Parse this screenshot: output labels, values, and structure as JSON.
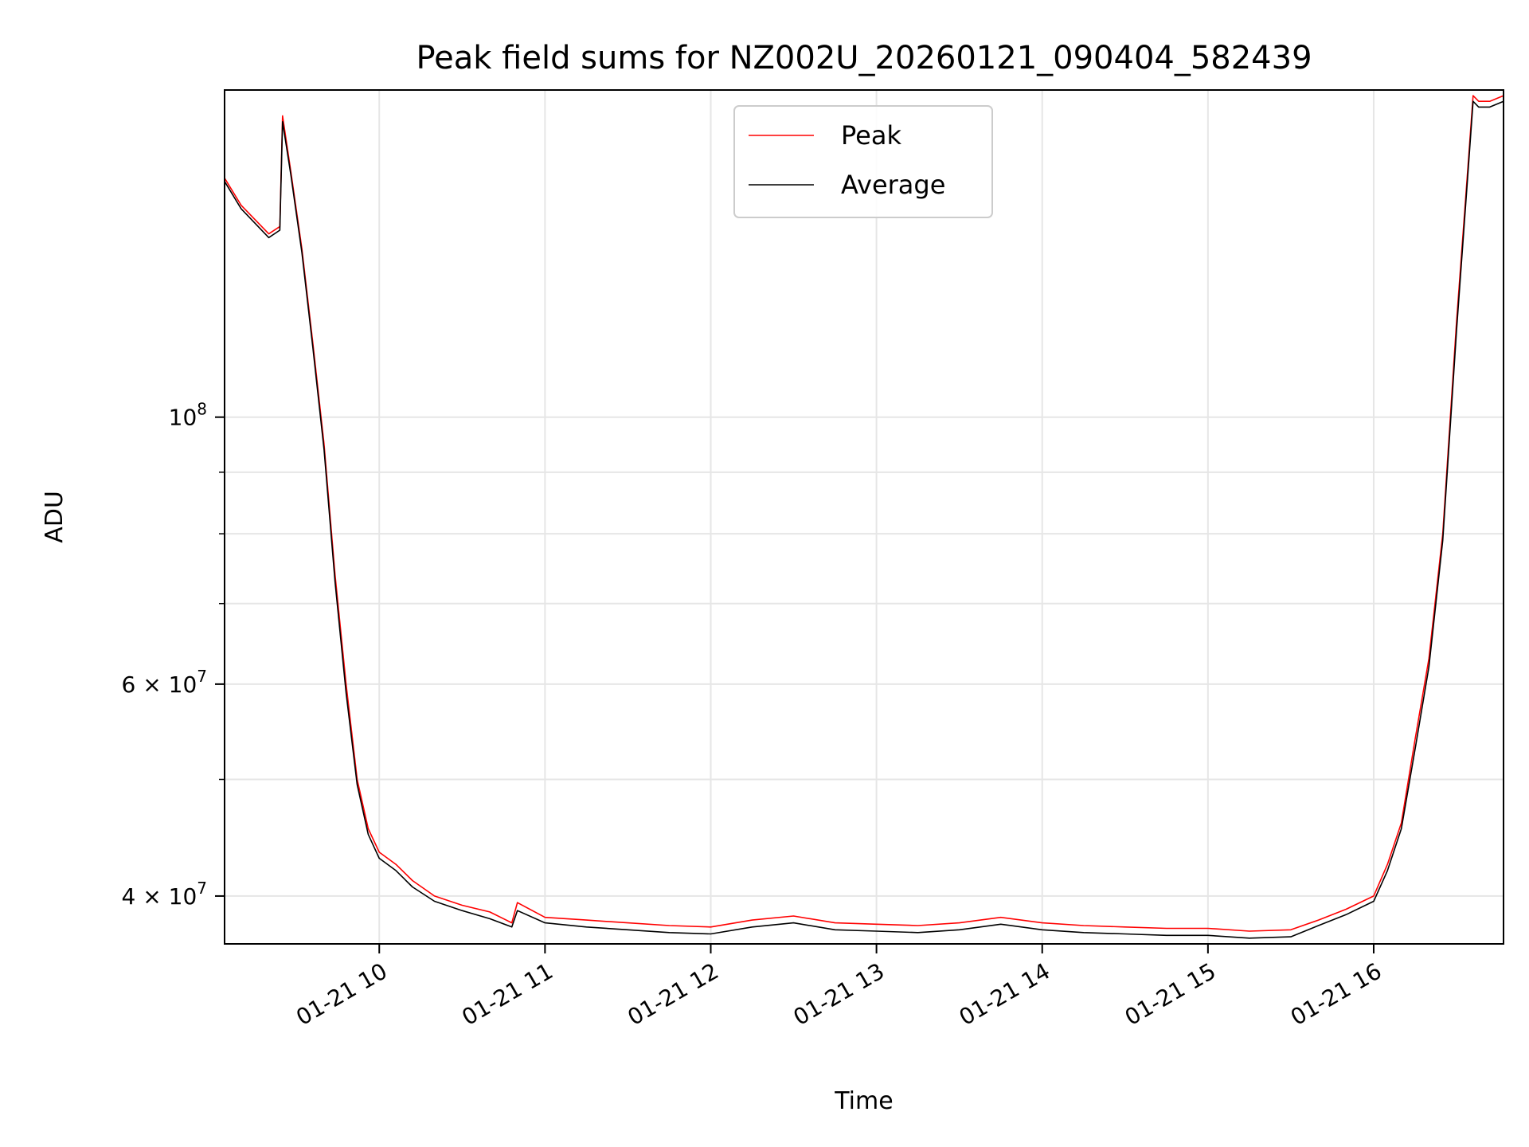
{
  "chart_data": {
    "type": "line",
    "title": "Peak field sums for NZ002U_20260121_090404_582439",
    "xlabel": "Time",
    "ylabel": "ADU",
    "y_scale": "log",
    "ylim": [
      36500000,
      187000000
    ],
    "xlim": [
      "2026-01-21 09:04",
      "2026-01-21 16:47"
    ],
    "x_ticks": [
      {
        "value": "2026-01-21 10:00",
        "label": "01-21 10"
      },
      {
        "value": "2026-01-21 11:00",
        "label": "01-21 11"
      },
      {
        "value": "2026-01-21 12:00",
        "label": "01-21 12"
      },
      {
        "value": "2026-01-21 13:00",
        "label": "01-21 13"
      },
      {
        "value": "2026-01-21 14:00",
        "label": "01-21 14"
      },
      {
        "value": "2026-01-21 15:00",
        "label": "01-21 15"
      },
      {
        "value": "2026-01-21 16:00",
        "label": "01-21 16"
      }
    ],
    "y_ticks": [
      {
        "value": 40000000,
        "base": "4 × 10",
        "exp": "7"
      },
      {
        "value": 60000000,
        "base": "6 × 10",
        "exp": "7"
      },
      {
        "value": 100000000,
        "base": "10",
        "exp": "8"
      }
    ],
    "y_minor_ticks": [
      50000000,
      70000000,
      80000000,
      90000000
    ],
    "grid": true,
    "legend_position": "top-center",
    "colors": {
      "peak": "#ff0000",
      "average": "#000000",
      "grid": "#e6e6e6"
    },
    "series": [
      {
        "name": "Peak",
        "x": [
          "2026-01-21 09:04",
          "2026-01-21 09:10",
          "2026-01-21 09:20",
          "2026-01-21 09:24",
          "2026-01-21 09:25",
          "2026-01-21 09:28",
          "2026-01-21 09:32",
          "2026-01-21 09:36",
          "2026-01-21 09:40",
          "2026-01-21 09:44",
          "2026-01-21 09:48",
          "2026-01-21 09:52",
          "2026-01-21 09:56",
          "2026-01-21 10:00",
          "2026-01-21 10:06",
          "2026-01-21 10:12",
          "2026-01-21 10:20",
          "2026-01-21 10:30",
          "2026-01-21 10:40",
          "2026-01-21 10:48",
          "2026-01-21 10:50",
          "2026-01-21 11:00",
          "2026-01-21 11:15",
          "2026-01-21 11:30",
          "2026-01-21 11:45",
          "2026-01-21 12:00",
          "2026-01-21 12:15",
          "2026-01-21 12:30",
          "2026-01-21 12:45",
          "2026-01-21 13:00",
          "2026-01-21 13:15",
          "2026-01-21 13:30",
          "2026-01-21 13:45",
          "2026-01-21 14:00",
          "2026-01-21 14:15",
          "2026-01-21 14:30",
          "2026-01-21 14:45",
          "2026-01-21 15:00",
          "2026-01-21 15:15",
          "2026-01-21 15:30",
          "2026-01-21 15:40",
          "2026-01-21 15:50",
          "2026-01-21 16:00",
          "2026-01-21 16:05",
          "2026-01-21 16:10",
          "2026-01-21 16:15",
          "2026-01-21 16:20",
          "2026-01-21 16:25",
          "2026-01-21 16:30",
          "2026-01-21 16:34",
          "2026-01-21 16:36",
          "2026-01-21 16:38",
          "2026-01-21 16:42",
          "2026-01-21 16:47"
        ],
        "y": [
          158000000,
          150000000,
          142000000,
          144000000,
          178000000,
          160000000,
          138000000,
          115000000,
          95000000,
          74000000,
          60000000,
          50000000,
          45500000,
          43500000,
          42500000,
          41200000,
          40000000,
          39300000,
          38800000,
          38000000,
          39500000,
          38400000,
          38200000,
          38000000,
          37800000,
          37700000,
          38200000,
          38500000,
          38000000,
          37900000,
          37800000,
          38000000,
          38400000,
          38000000,
          37800000,
          37700000,
          37600000,
          37600000,
          37400000,
          37500000,
          38200000,
          39000000,
          40000000,
          42500000,
          46000000,
          54000000,
          63000000,
          80000000,
          120000000,
          160000000,
          185000000,
          183000000,
          183000000,
          185000000
        ]
      },
      {
        "name": "Average",
        "x": [
          "2026-01-21 09:04",
          "2026-01-21 09:10",
          "2026-01-21 09:20",
          "2026-01-21 09:24",
          "2026-01-21 09:25",
          "2026-01-21 09:28",
          "2026-01-21 09:32",
          "2026-01-21 09:36",
          "2026-01-21 09:40",
          "2026-01-21 09:44",
          "2026-01-21 09:48",
          "2026-01-21 09:52",
          "2026-01-21 09:56",
          "2026-01-21 10:00",
          "2026-01-21 10:06",
          "2026-01-21 10:12",
          "2026-01-21 10:20",
          "2026-01-21 10:30",
          "2026-01-21 10:40",
          "2026-01-21 10:48",
          "2026-01-21 10:50",
          "2026-01-21 11:00",
          "2026-01-21 11:15",
          "2026-01-21 11:30",
          "2026-01-21 11:45",
          "2026-01-21 12:00",
          "2026-01-21 12:15",
          "2026-01-21 12:30",
          "2026-01-21 12:45",
          "2026-01-21 13:00",
          "2026-01-21 13:15",
          "2026-01-21 13:30",
          "2026-01-21 13:45",
          "2026-01-21 14:00",
          "2026-01-21 14:15",
          "2026-01-21 14:30",
          "2026-01-21 14:45",
          "2026-01-21 15:00",
          "2026-01-21 15:15",
          "2026-01-21 15:30",
          "2026-01-21 15:40",
          "2026-01-21 15:50",
          "2026-01-21 16:00",
          "2026-01-21 16:05",
          "2026-01-21 16:10",
          "2026-01-21 16:15",
          "2026-01-21 16:20",
          "2026-01-21 16:25",
          "2026-01-21 16:30",
          "2026-01-21 16:34",
          "2026-01-21 16:36",
          "2026-01-21 16:38",
          "2026-01-21 16:42",
          "2026-01-21 16:47"
        ],
        "y": [
          157000000,
          149000000,
          141000000,
          143000000,
          176000000,
          159000000,
          137000000,
          114000000,
          94000000,
          73000000,
          59000000,
          49500000,
          45000000,
          43000000,
          42000000,
          40700000,
          39600000,
          38900000,
          38300000,
          37700000,
          38900000,
          38000000,
          37700000,
          37500000,
          37300000,
          37200000,
          37700000,
          38000000,
          37500000,
          37400000,
          37300000,
          37500000,
          37900000,
          37500000,
          37300000,
          37200000,
          37100000,
          37100000,
          36900000,
          37000000,
          37800000,
          38600000,
          39600000,
          42000000,
          45500000,
          53000000,
          62000000,
          79000000,
          118000000,
          158000000,
          183000000,
          181000000,
          181000000,
          183000000
        ]
      }
    ]
  }
}
